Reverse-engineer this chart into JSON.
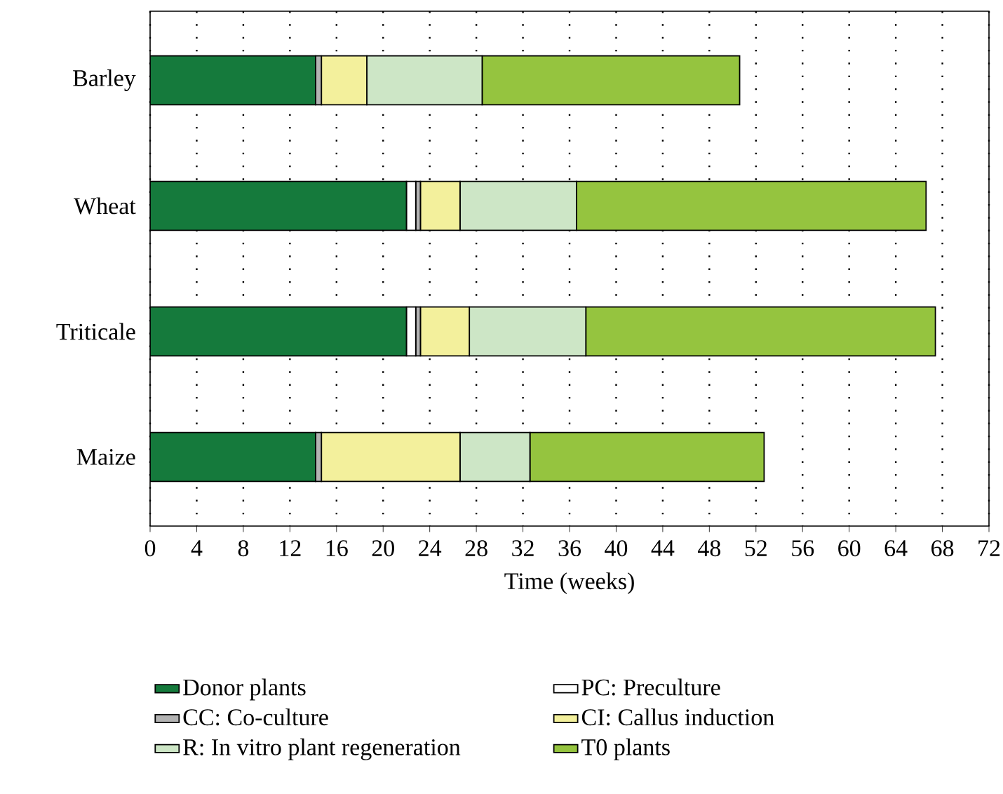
{
  "chart_data": {
    "type": "bar",
    "orientation": "horizontal",
    "stacked": true,
    "xlabel": "Time (weeks)",
    "categories": [
      "Barley",
      "Wheat",
      "Triticale",
      "Maize"
    ],
    "series": [
      {
        "name": "Donor plants",
        "color": "#157a3c",
        "values": [
          14.2,
          22,
          22,
          14.2
        ]
      },
      {
        "name": "PC: Preculture",
        "color": "#ffffff",
        "values": [
          0,
          0.8,
          0.8,
          0
        ]
      },
      {
        "name": "CC: Co-culture",
        "color": "#b3b3b3",
        "values": [
          0.5,
          0.4,
          0.4,
          0.5
        ]
      },
      {
        "name": "CI: Callus induction",
        "color": "#f3f09c",
        "values": [
          3.9,
          3.4,
          4.2,
          11.9
        ]
      },
      {
        "name": "R: In vitro plant regeneration",
        "color": "#cde6c6",
        "values": [
          9.9,
          10,
          10,
          6
        ]
      },
      {
        "name": "T0 plants",
        "color": "#95c43f",
        "values": [
          22.1,
          30,
          30,
          20.1
        ]
      }
    ],
    "xlim": [
      0,
      72
    ],
    "xticks": [
      0,
      4,
      8,
      12,
      16,
      20,
      24,
      28,
      32,
      36,
      40,
      44,
      48,
      52,
      56,
      60,
      64,
      68,
      72
    ],
    "grid": "x",
    "legend": "bottom"
  }
}
